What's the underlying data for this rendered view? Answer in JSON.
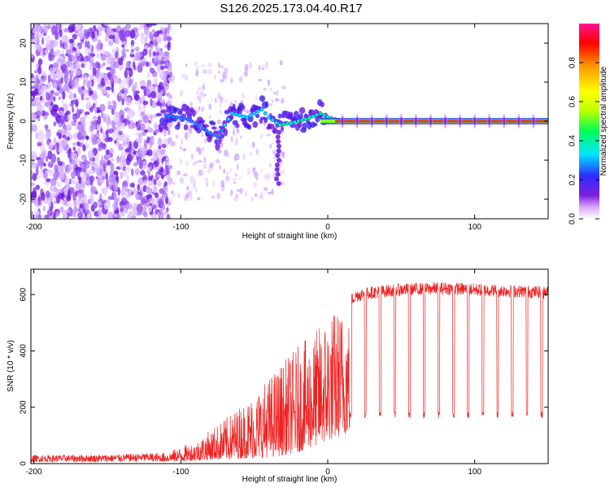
{
  "chart_data": [
    {
      "type": "heatmap",
      "title": "S126.2025.173.04.40.R17",
      "xlabel": "Height of straight line (km)",
      "ylabel": "Frequency (Hz)",
      "xlim": [
        -202,
        150
      ],
      "ylim": [
        -25,
        25
      ],
      "xticks": [
        -200,
        -100,
        0,
        100
      ],
      "yticks": [
        -20,
        -10,
        0,
        10,
        20
      ],
      "colorbar": {
        "label": "Normalized spectral amplitude",
        "range": [
          0,
          1
        ],
        "ticks": [
          "0.0",
          "0.2",
          "0.4",
          "0.6",
          "0.8"
        ],
        "colors": [
          "#ffffff",
          "#d9a6ff",
          "#7b1fe0",
          "#2d2dff",
          "#00e5ff",
          "#00ff55",
          "#b8ff00",
          "#ffff00",
          "#ff9900",
          "#ff0000",
          "#ff1493"
        ]
      },
      "signal_track": {
        "description_points": [
          {
            "x": -110,
            "y": 1.5
          },
          {
            "x": -95,
            "y": 0.5
          },
          {
            "x": -80,
            "y": -3
          },
          {
            "x": -75,
            "y": -4
          },
          {
            "x": -65,
            "y": 2
          },
          {
            "x": -55,
            "y": 1
          },
          {
            "x": -45,
            "y": 3
          },
          {
            "x": -40,
            "y": 1
          },
          {
            "x": -33,
            "y": -1
          },
          {
            "x": -25,
            "y": -0.5
          },
          {
            "x": -15,
            "y": 0.5
          },
          {
            "x": -5,
            "y": 2
          },
          {
            "x": 0,
            "y": 1
          },
          {
            "x": 10,
            "y": 0
          },
          {
            "x": 150,
            "y": 0
          }
        ],
        "tone_x_range": [
          5,
          150
        ],
        "tone_frequency": 0
      }
    },
    {
      "type": "line",
      "xlabel": "Height of straight line (km)",
      "ylabel": "SNR (10 * v/v)",
      "xlim": [
        -202,
        150
      ],
      "ylim": [
        0,
        690
      ],
      "xticks": [
        -200,
        -100,
        0,
        100
      ],
      "yticks": [
        0,
        200,
        400,
        600
      ],
      "color": "#ee2222",
      "envelope": {
        "x": [
          -202,
          -150,
          -110,
          -90,
          -70,
          -50,
          -35,
          -20,
          -10,
          0,
          10,
          20,
          30,
          50,
          80,
          100,
          150
        ],
        "lower": [
          5,
          5,
          8,
          10,
          15,
          20,
          25,
          40,
          60,
          80,
          100,
          130,
          150,
          165,
          170,
          170,
          165
        ],
        "upper": [
          30,
          32,
          40,
          80,
          160,
          250,
          340,
          420,
          460,
          540,
          560,
          600,
          610,
          620,
          625,
          620,
          610
        ]
      },
      "dropout_spacing": 10,
      "dropout_level": 160
    }
  ]
}
